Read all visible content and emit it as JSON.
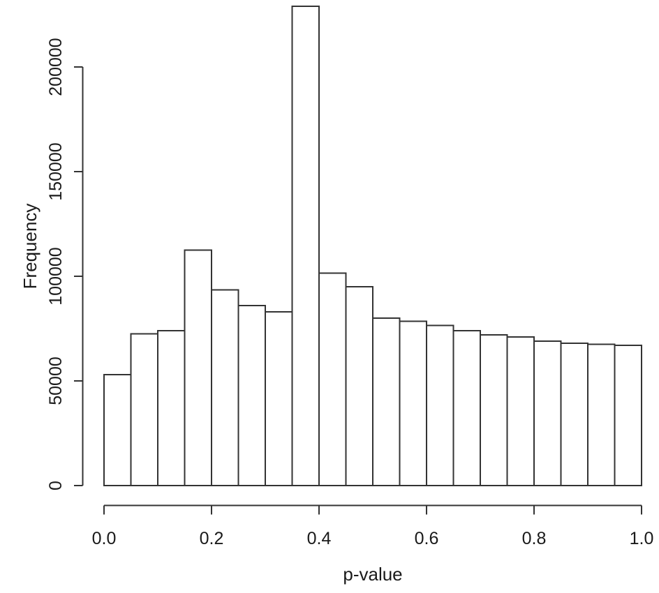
{
  "figure": {
    "background": "#ffffff"
  },
  "chart_data": {
    "type": "bar",
    "subtype": "histogram",
    "title": "",
    "xlabel": "p-value",
    "ylabel": "Frequency",
    "bin_edges": [
      0.0,
      0.05,
      0.1,
      0.15,
      0.2,
      0.25,
      0.3,
      0.35,
      0.4,
      0.45,
      0.5,
      0.55,
      0.6,
      0.65,
      0.7,
      0.75,
      0.8,
      0.85,
      0.9,
      0.95,
      1.0
    ],
    "values": [
      53000,
      72500,
      74000,
      112500,
      93500,
      86000,
      83000,
      229000,
      101500,
      95000,
      80000,
      78500,
      76500,
      74000,
      72000,
      71000,
      69000,
      68000,
      67500,
      67000
    ],
    "x_tick_labels": [
      "0.0",
      "0.2",
      "0.4",
      "0.6",
      "0.8",
      "1.0"
    ],
    "x_tick_values": [
      0.0,
      0.2,
      0.4,
      0.6,
      0.8,
      1.0
    ],
    "y_tick_labels": [
      "0",
      "50000",
      "100000",
      "150000",
      "200000"
    ],
    "y_tick_values": [
      0,
      50000,
      100000,
      150000,
      200000
    ],
    "xlim": [
      0.0,
      1.0
    ],
    "ylim": [
      0,
      230000
    ],
    "grid": false,
    "legend": null,
    "bar_fill": "#ffffff",
    "stroke_color": "#333333",
    "text_color": "#1a1a1a"
  }
}
